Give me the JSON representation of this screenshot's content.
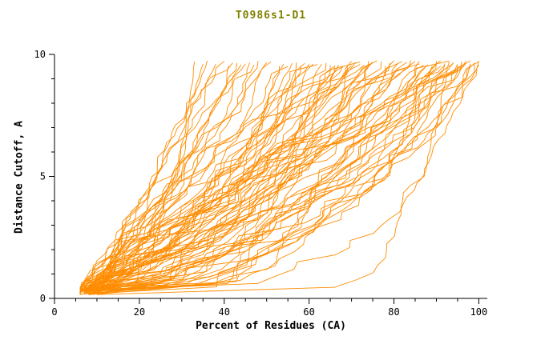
{
  "chart_data": {
    "type": "line",
    "title": "T0986s1-D1",
    "xlabel": "Percent of Residues (CA)",
    "ylabel": "Distance Cutoff, A",
    "xlim": [
      0,
      102
    ],
    "ylim": [
      0,
      10
    ],
    "x_major_ticks": [
      0,
      20,
      40,
      60,
      80,
      100
    ],
    "x_minor_step": 5,
    "y_major_ticks": [
      0,
      5,
      10
    ],
    "y_minor_step": 1,
    "grid": false,
    "legend": "none",
    "line_color": "#ff8c00",
    "title_color": "#808000",
    "axis_color": "#000000",
    "curve_y_top": 9.7,
    "curve_y_start": 0.25,
    "curves": [
      [
        7,
        33,
        0.5
      ],
      [
        8,
        35,
        0.65
      ],
      [
        6,
        36,
        0.45
      ],
      [
        9,
        38,
        0.8
      ],
      [
        7,
        40,
        0.55
      ],
      [
        10,
        41,
        0.7
      ],
      [
        6,
        43,
        0.5
      ],
      [
        8,
        44,
        0.9
      ],
      [
        7,
        46,
        0.6
      ],
      [
        9,
        47,
        0.75
      ],
      [
        6,
        48,
        0.5
      ],
      [
        10,
        50,
        0.85
      ],
      [
        7,
        51,
        0.6
      ],
      [
        8,
        53,
        0.7
      ],
      [
        6,
        54,
        0.55
      ],
      [
        9,
        55,
        0.9
      ],
      [
        7,
        45,
        1.1
      ],
      [
        8,
        42,
        1.0
      ],
      [
        6,
        56,
        0.6
      ],
      [
        9,
        57,
        0.9
      ],
      [
        7,
        58,
        0.5
      ],
      [
        10,
        59,
        1.1
      ],
      [
        6,
        60,
        0.7
      ],
      [
        8,
        61,
        0.45
      ],
      [
        7,
        62,
        0.95
      ],
      [
        9,
        63,
        0.6
      ],
      [
        6,
        64,
        1.2
      ],
      [
        10,
        65,
        0.5
      ],
      [
        7,
        66,
        0.8
      ],
      [
        8,
        67,
        0.6
      ],
      [
        6,
        68,
        1.0
      ],
      [
        9,
        69,
        0.45
      ],
      [
        7,
        70,
        0.75
      ],
      [
        10,
        71,
        0.55
      ],
      [
        6,
        72,
        0.9
      ],
      [
        8,
        73,
        0.65
      ],
      [
        7,
        74,
        1.15
      ],
      [
        9,
        75,
        0.5
      ],
      [
        6,
        75,
        0.8
      ],
      [
        8,
        74,
        0.4
      ],
      [
        10,
        72,
        1.3
      ],
      [
        7,
        70,
        0.6
      ],
      [
        6,
        68,
        0.85
      ],
      [
        9,
        66,
        1.05
      ],
      [
        6,
        76,
        0.55
      ],
      [
        8,
        77,
        0.85
      ],
      [
        7,
        78,
        0.4
      ],
      [
        9,
        79,
        1.0
      ],
      [
        6,
        80,
        0.6
      ],
      [
        10,
        81,
        0.35
      ],
      [
        7,
        82,
        0.9
      ],
      [
        8,
        83,
        0.5
      ],
      [
        6,
        84,
        1.1
      ],
      [
        9,
        85,
        0.45
      ],
      [
        7,
        86,
        0.7
      ],
      [
        10,
        87,
        0.55
      ],
      [
        6,
        88,
        0.95
      ],
      [
        8,
        89,
        0.4
      ],
      [
        7,
        90,
        0.8
      ],
      [
        9,
        91,
        0.5
      ],
      [
        6,
        92,
        1.05
      ],
      [
        10,
        93,
        0.35
      ],
      [
        7,
        94,
        0.65
      ],
      [
        8,
        95,
        0.45
      ],
      [
        6,
        96,
        0.85
      ],
      [
        9,
        97,
        0.38
      ],
      [
        7,
        98,
        0.6
      ],
      [
        10,
        99,
        0.42
      ],
      [
        6,
        100,
        0.5
      ],
      [
        8,
        100,
        0.35
      ],
      [
        7,
        100,
        0.7
      ],
      [
        9,
        99,
        0.55
      ],
      [
        6,
        98,
        0.32
      ],
      [
        10,
        97,
        0.75
      ],
      [
        7,
        96,
        0.48
      ],
      [
        8,
        95,
        0.9
      ],
      [
        6,
        94,
        0.36
      ],
      [
        9,
        93,
        0.62
      ],
      [
        7,
        92,
        0.44
      ],
      [
        10,
        91,
        0.95
      ],
      [
        6,
        90,
        0.4
      ],
      [
        8,
        88,
        0.58
      ],
      [
        7,
        86,
        0.34
      ],
      [
        9,
        84,
        0.72
      ]
    ]
  }
}
